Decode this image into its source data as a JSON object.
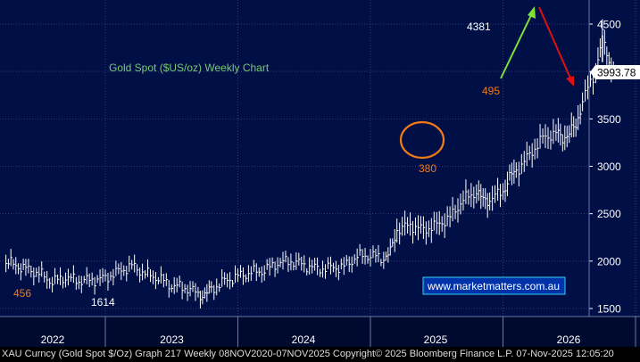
{
  "chart_data": {
    "type": "line",
    "title": "Gold Spot ($US/oz) Weekly Chart",
    "y_axis": {
      "ylim": [
        1400,
        4750
      ],
      "ticks": [
        1500,
        2000,
        2500,
        3000,
        3500,
        4000,
        4500
      ],
      "position": "right"
    },
    "x_axis": {
      "ticks": [
        "2022",
        "2023",
        "2024",
        "2025",
        "2026"
      ]
    },
    "grid": true,
    "current_price": "3993.78",
    "series": [
      {
        "x": [
          2021.25,
          2021.4,
          2021.5,
          2021.6,
          2021.7,
          2021.8,
          2021.9,
          2022.0,
          2022.1,
          2022.2,
          2022.3,
          2022.4,
          2022.5,
          2022.6,
          2022.7,
          2022.75,
          2022.8,
          2022.9,
          2023.0,
          2023.1,
          2023.2,
          2023.3,
          2023.4,
          2023.5,
          2023.6,
          2023.7,
          2023.8,
          2023.9,
          2024.0,
          2024.1,
          2024.15,
          2024.2,
          2024.3,
          2024.4,
          2024.5,
          2024.6,
          2024.7,
          2024.8,
          2024.85,
          2024.9,
          2025.0,
          2025.05,
          2025.1,
          2025.2,
          2025.3,
          2025.4,
          2025.45,
          2025.5,
          2025.55,
          2025.6,
          2025.7,
          2025.75,
          2025.8,
          2025.85
        ],
        "values": [
          1990,
          1920,
          1870,
          1780,
          1830,
          1790,
          1800,
          1820,
          1890,
          1950,
          1870,
          1820,
          1740,
          1720,
          1660,
          1640,
          1700,
          1790,
          1840,
          1880,
          1900,
          1980,
          2000,
          1960,
          1920,
          1930,
          1940,
          2050,
          2060,
          2030,
          2090,
          2330,
          2380,
          2330,
          2380,
          2460,
          2650,
          2730,
          2640,
          2650,
          2740,
          2880,
          2950,
          3120,
          3300,
          3350,
          3300,
          3350,
          3420,
          3700,
          4000,
          4381,
          4100,
          3993.78
        ]
      }
    ],
    "annotations": [
      {
        "text": "456",
        "color": "#f07a18"
      },
      {
        "text": "1614",
        "color": "#ffffff"
      },
      {
        "text": "380",
        "color": "#f07a18"
      },
      {
        "text": "495",
        "color": "#f07a18"
      },
      {
        "text": "4381",
        "color": "#ffffff"
      }
    ],
    "watermark": "www.marketmatters.com.au"
  },
  "footer": {
    "text": "XAU Curncy (Gold Spot  $/Oz) Graph 217 Weekly 08NOV2020-07NOV2025 Copyright© 2025 Bloomberg Finance L.P.  07-Nov-2025 12:05:20"
  },
  "colors": {
    "background": "#000f46",
    "grid": "#2f3c74",
    "price": "#ffffff",
    "title": "#78c878",
    "orange": "#f07a18",
    "up_arrow": "#7fe23a",
    "down_arrow": "#e01010",
    "watermark_border": "#2fd2f0"
  }
}
